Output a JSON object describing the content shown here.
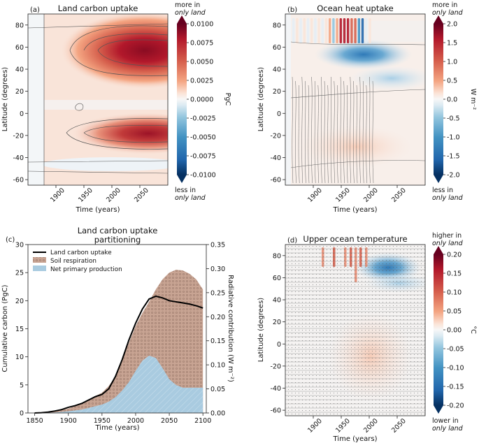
{
  "chart_data": [
    {
      "type": "heatmap",
      "panel_label": "(a)",
      "title": "Land carbon uptake",
      "xlabel": "Time (years)",
      "ylabel": "Latitude (degrees)",
      "xlim": [
        1850,
        2100
      ],
      "ylim": [
        -65,
        90
      ],
      "xticks": [
        "1900",
        "1950",
        "2000",
        "2050"
      ],
      "yticks": [
        "80",
        "60",
        "40",
        "20",
        "0",
        "-20",
        "-40",
        "-60"
      ],
      "colorbar": {
        "label": "PgC",
        "ticks": [
          "0.0100",
          "0.0075",
          "0.0050",
          "0.0025",
          "0.0000",
          "-0.0025",
          "-0.0050",
          "-0.0075",
          "-0.0100"
        ],
        "top_note": [
          "more in",
          "only land"
        ],
        "bottom_note": [
          "less in",
          "only land"
        ]
      },
      "features": [
        {
          "x": 2060,
          "y": 60,
          "value": 0.01
        },
        {
          "x": 2045,
          "y": -20,
          "value": 0.0085
        }
      ]
    },
    {
      "type": "heatmap",
      "panel_label": "(b)",
      "title": "Ocean heat uptake",
      "xlabel": "Time (years)",
      "ylabel": "Latitude (degrees)",
      "xlim": [
        1850,
        2100
      ],
      "ylim": [
        -65,
        90
      ],
      "xticks": [
        "1900",
        "1950",
        "2000",
        "2050"
      ],
      "yticks": [
        "80",
        "60",
        "40",
        "20",
        "0",
        "-20",
        "-40",
        "-60"
      ],
      "colorbar": {
        "label": "W m⁻²",
        "ticks": [
          "2.0",
          "1.5",
          "1.0",
          "0.5",
          "0.0",
          "-0.5",
          "-1.0",
          "-1.5",
          "-2.0"
        ],
        "top_note": [
          "more in",
          "only land"
        ],
        "bottom_note": [
          "less in",
          "only land"
        ]
      }
    },
    {
      "type": "area",
      "panel_label": "(c)",
      "title": [
        "Land carbon uptake",
        "partitioning"
      ],
      "xlabel": "Time (years)",
      "ylabel": "Cumulative carbon (PgC)",
      "y2label": "Radiative contribution (W m⁻²)",
      "xlim": [
        1840,
        2105
      ],
      "ylim": [
        0,
        30
      ],
      "y2lim": [
        0,
        0.35
      ],
      "xticks": [
        "1850",
        "1900",
        "1950",
        "2000",
        "2050",
        "2100"
      ],
      "yticks": [
        "0",
        "5",
        "10",
        "15",
        "20",
        "25",
        "30"
      ],
      "y2ticks": [
        "0.00",
        "0.05",
        "0.10",
        "0.15",
        "0.20",
        "0.25",
        "0.30",
        "0.35"
      ],
      "legend": [
        "Land carbon uptake",
        "Soil respiration",
        "Net primary production"
      ],
      "x": [
        1850,
        1860,
        1870,
        1880,
        1890,
        1900,
        1910,
        1920,
        1930,
        1940,
        1950,
        1960,
        1970,
        1980,
        1990,
        2000,
        2010,
        2020,
        2030,
        2040,
        2050,
        2060,
        2070,
        2080,
        2090,
        2100
      ],
      "series": [
        {
          "name": "Land carbon uptake",
          "values": [
            0.0,
            0.05,
            0.15,
            0.35,
            0.6,
            1.0,
            1.3,
            1.7,
            2.3,
            2.9,
            3.3,
            4.3,
            6.5,
            9.5,
            13.0,
            16.0,
            18.5,
            20.3,
            20.8,
            20.5,
            20.0,
            19.8,
            19.6,
            19.4,
            19.1,
            18.7
          ]
        },
        {
          "name": "Soil respiration",
          "values": [
            0.0,
            0.05,
            0.15,
            0.3,
            0.5,
            0.8,
            1.2,
            1.7,
            2.3,
            3.0,
            3.6,
            4.8,
            6.5,
            9.5,
            12.5,
            15.5,
            17.8,
            19.8,
            22.0,
            23.8,
            25.0,
            25.5,
            25.4,
            24.8,
            23.8,
            22.0
          ]
        },
        {
          "name": "Net primary production",
          "values": [
            0.0,
            0.0,
            0.05,
            0.1,
            0.2,
            0.3,
            0.45,
            0.6,
            0.9,
            1.2,
            1.5,
            2.0,
            2.8,
            4.0,
            5.5,
            7.5,
            9.3,
            10.2,
            9.8,
            8.0,
            6.0,
            5.0,
            4.5,
            4.5,
            4.5,
            4.5
          ]
        }
      ]
    },
    {
      "type": "heatmap",
      "panel_label": "(d)",
      "title": "Upper ocean temperature",
      "xlabel": "Time (years)",
      "ylabel": "Latitude (degrees)",
      "xlim": [
        1850,
        2100
      ],
      "ylim": [
        -65,
        90
      ],
      "xticks": [
        "1900",
        "1950",
        "2000",
        "2050"
      ],
      "yticks": [
        "80",
        "60",
        "40",
        "20",
        "0",
        "-20",
        "-40",
        "-60"
      ],
      "colorbar": {
        "label": "°C",
        "ticks": [
          "0.20",
          "0.15",
          "0.10",
          "0.05",
          "0.00",
          "-0.05",
          "-0.10",
          "-0.15",
          "-0.20"
        ],
        "top_note": [
          "higher in",
          "only land"
        ],
        "bottom_note": [
          "lower in",
          "only land"
        ]
      }
    }
  ]
}
